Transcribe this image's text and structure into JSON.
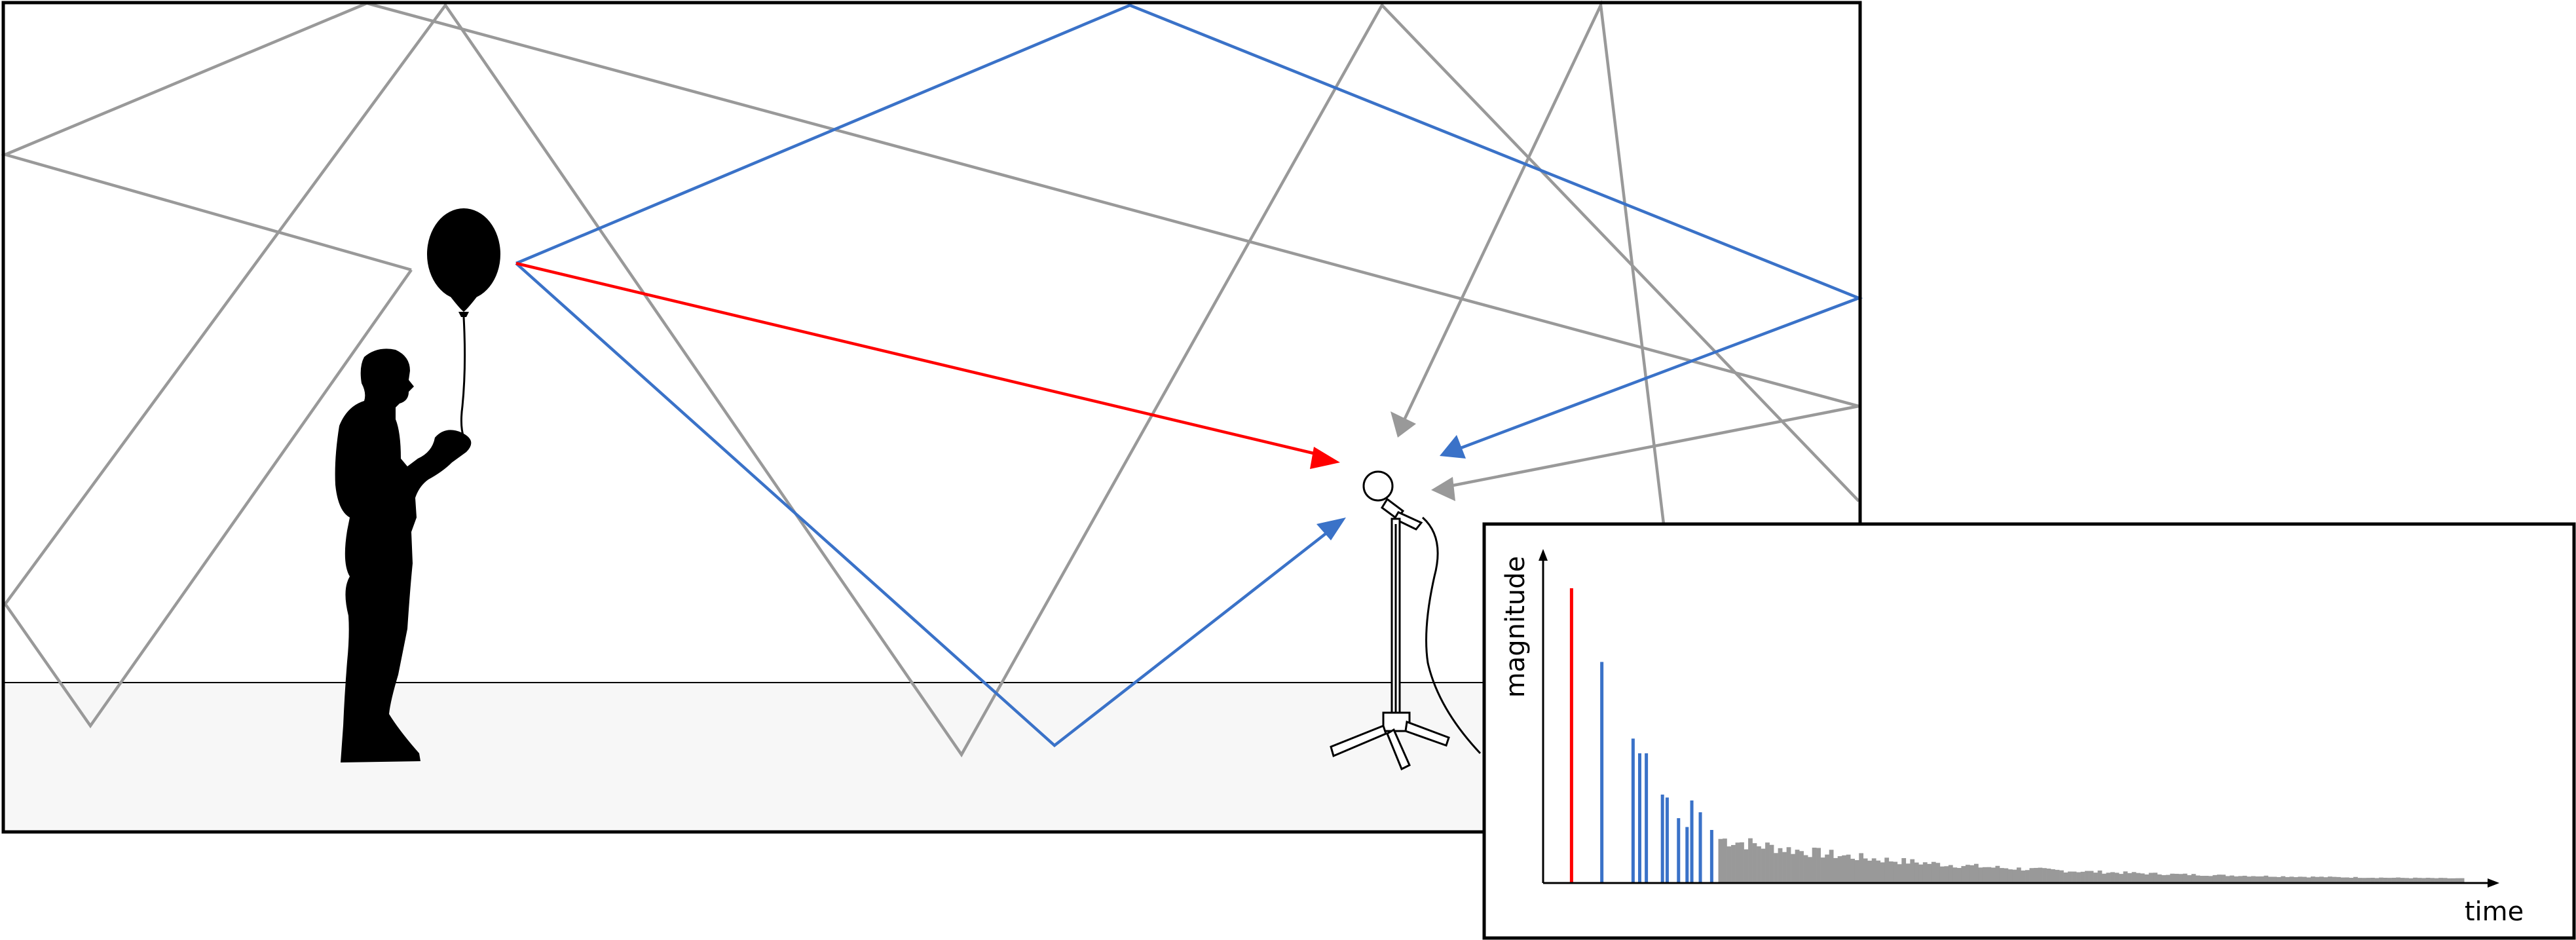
{
  "colors": {
    "direct": "#ff0000",
    "early_reflection": "#3a72c8",
    "late_reflection": "#999999",
    "floor": "#f7f7f7",
    "outline": "#000000"
  },
  "icons": [
    "person-silhouette-icon",
    "balloon-icon",
    "microphone-icon",
    "microphone-stand-icon"
  ],
  "inset": {
    "y_label": "magnitude",
    "x_label": "time"
  },
  "chart_data": {
    "type": "bar",
    "title": "",
    "xlabel": "time",
    "ylabel": "magnitude",
    "xlim": [
      0,
      100
    ],
    "ylim": [
      0,
      100
    ],
    "grid": false,
    "series": [
      {
        "values_x": [
          3.0
        ],
        "values_y": [
          100
        ]
      },
      {
        "values_x": [
          6.2,
          9.5,
          10.2,
          10.9,
          12.6,
          13.1,
          14.3,
          15.2,
          15.7,
          16.6,
          17.8
        ],
        "values_y": [
          75,
          49,
          44,
          44,
          30,
          29,
          22,
          19,
          28,
          24,
          18
        ]
      }
    ],
    "tail": {
      "start": 18.5,
      "end": 97,
      "start_value": 17,
      "end_value": 1,
      "decay": 3.2
    }
  }
}
